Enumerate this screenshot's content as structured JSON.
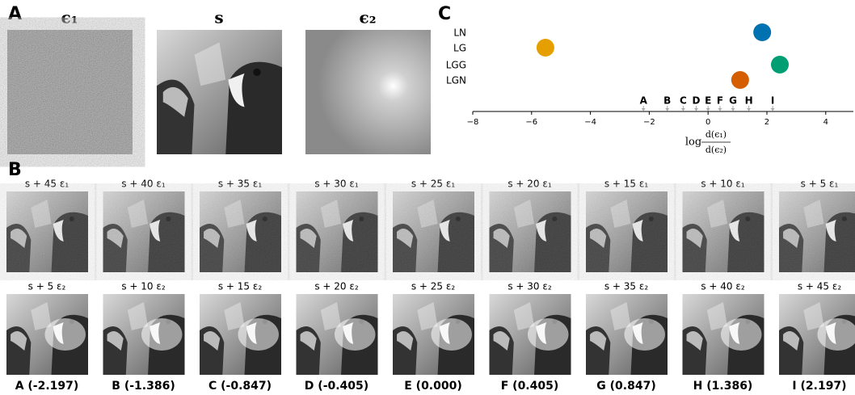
{
  "panel_a": {
    "label": "A",
    "titles": [
      "ϵ₁",
      "s",
      "ϵ₂"
    ]
  },
  "panel_b": {
    "label": "B",
    "row1": [
      "s + 45 ε₁",
      "s + 40 ε₁",
      "s + 35 ε₁",
      "s + 30 ε₁",
      "s + 25 ε₁",
      "s + 20 ε₁",
      "s + 15 ε₁",
      "s + 10 ε₁",
      "s + 5 ε₁"
    ],
    "row2": [
      "s + 5 ε₂",
      "s + 10 ε₂",
      "s + 15 ε₂",
      "s + 20 ε₂",
      "s + 25 ε₂",
      "s + 30 ε₂",
      "s + 35 ε₂",
      "s + 40 ε₂",
      "s + 45 ε₂"
    ],
    "captions": [
      "A (-2.197)",
      "B (-1.386)",
      "C (-0.847)",
      "D (-0.405)",
      "E (0.000)",
      "F (0.405)",
      "G (0.847)",
      "H (1.386)",
      "I (2.197)"
    ]
  },
  "chart_data": {
    "type": "scatter",
    "label": "C",
    "categories": [
      "LN",
      "LG",
      "LGG",
      "LGN"
    ],
    "series": [
      {
        "name": "LN",
        "color": "#0072b2",
        "x": [
          1.84
        ]
      },
      {
        "name": "LG",
        "color": "#e69f00",
        "x": [
          -5.53
        ]
      },
      {
        "name": "LGG",
        "color": "#009e73",
        "x": [
          2.44
        ]
      },
      {
        "name": "LGN",
        "color": "#d55e00",
        "x": [
          1.09
        ]
      }
    ],
    "markers": {
      "labels": [
        "A",
        "B",
        "C",
        "D",
        "E",
        "F",
        "G",
        "H",
        "I"
      ],
      "x": [
        -2.197,
        -1.386,
        -0.847,
        -0.405,
        0,
        0.405,
        0.847,
        1.386,
        2.197
      ]
    },
    "xlim": [
      -8,
      4.94
    ],
    "xticks": [
      {
        "value": -8,
        "label": "−8"
      },
      {
        "value": -6,
        "label": "−6"
      },
      {
        "value": -4,
        "label": "−4"
      },
      {
        "value": -2,
        "label": "−2"
      },
      0,
      2,
      4
    ],
    "xlabel": {
      "log": "log",
      "numerator": "d(ϵ₁)",
      "denominator": "d(ϵ₂)"
    }
  }
}
